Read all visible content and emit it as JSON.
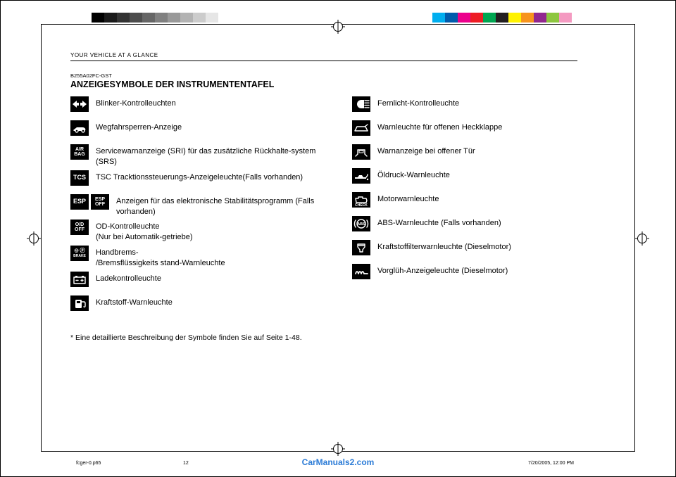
{
  "print_marks": {
    "grayscale_bars": [
      "#000000",
      "#1a1a1a",
      "#333333",
      "#4d4d4d",
      "#666666",
      "#808080",
      "#999999",
      "#b3b3b3",
      "#cccccc",
      "#e6e6e6",
      "#ffffff",
      "#ffffff"
    ],
    "color_bars": [
      "#00aeef",
      "#005bac",
      "#ec008c",
      "#ed1c24",
      "#00a651",
      "#231f20",
      "#fff200",
      "#f7941d",
      "#92278f",
      "#8dc63f",
      "#f49ac1",
      "#ffffff"
    ]
  },
  "running_head": "YOUR VEHICLE AT A GLANCE",
  "code_id": "B255A02FC-GST",
  "title": "ANZEIGESYMBOLE DER INSTRUMENTENTAFEL",
  "left_items": [
    {
      "icon_kind": "turn",
      "label": "Blinker-Kontrolleuchten"
    },
    {
      "icon_kind": "immob",
      "label": "Wegfahrsperren-Anzeige"
    },
    {
      "icon_kind": "airbag",
      "icon_text": "AIR\nBAG",
      "label": "Servicewarnanzeige (SRI) für das zusätzliche Rückhalte-system  (SRS)"
    },
    {
      "icon_kind": "tcs",
      "icon_text": "TCS",
      "label": "TSC  Tracktionssteuerungs-Anzeigeleuchte(Falls vorhanden)"
    },
    {
      "icon_kind": "esp",
      "icon_text": "ESP",
      "icon_text2": "ESP\nOFF",
      "label": "Anzeigen für das elektronische Stabilitätsprogramm (Falls vorhanden)"
    },
    {
      "icon_kind": "odoff",
      "icon_text": "O/D\nOFF",
      "label": "OD-Kontrolleuchte\n(Nur bei Automatik-getriebe)"
    },
    {
      "icon_kind": "brake",
      "icon_text": "⦾⦿\nBRAKE",
      "label": "Handbrems-\n/Bremsflüssigkeits stand-Warnleuchte"
    },
    {
      "icon_kind": "battery",
      "label": "Ladekontrolleuchte"
    },
    {
      "icon_kind": "fuel",
      "label": "Kraftstoff-Warnleuchte"
    }
  ],
  "right_items": [
    {
      "icon_kind": "highbeam",
      "label": "Fernlicht-Kontrolleuchte"
    },
    {
      "icon_kind": "tailgate",
      "label": "Warnleuchte für offenen  Heckklappe"
    },
    {
      "icon_kind": "door",
      "label": "Warnanzeige bei offener Tür"
    },
    {
      "icon_kind": "oil",
      "label": "Öldruck-Warnleuchte"
    },
    {
      "icon_kind": "check",
      "label": "Motorwarnleuchte"
    },
    {
      "icon_kind": "abs",
      "icon_text": "ABS",
      "label": "ABS-Warnleuchte (Falls vorhanden)"
    },
    {
      "icon_kind": "fuelfilter",
      "label": "Kraftstoffilterwarnleuchte (Dieselmotor)"
    },
    {
      "icon_kind": "glow",
      "label": "Vorglüh-Anzeigeleuchte (Dieselmotor)"
    }
  ],
  "footnote": "* Eine detaillierte Beschreibung der Symbole finden Sie auf Seite 1-48.",
  "footer": {
    "file": "fcger-0.p65",
    "page": "12",
    "date": "7/20/2005, 12:00 PM"
  },
  "watermark": "CarManuals2.com",
  "fonts": {
    "body_pt": 11,
    "title_pt": 12.5,
    "runhead_pt": 8,
    "footnote_pt": 10.5,
    "footer_pt": 7
  },
  "colors": {
    "text": "#000000",
    "background": "#ffffff",
    "icon_bg": "#000000",
    "icon_fg": "#ffffff",
    "watermark": "#2b7bd6"
  }
}
